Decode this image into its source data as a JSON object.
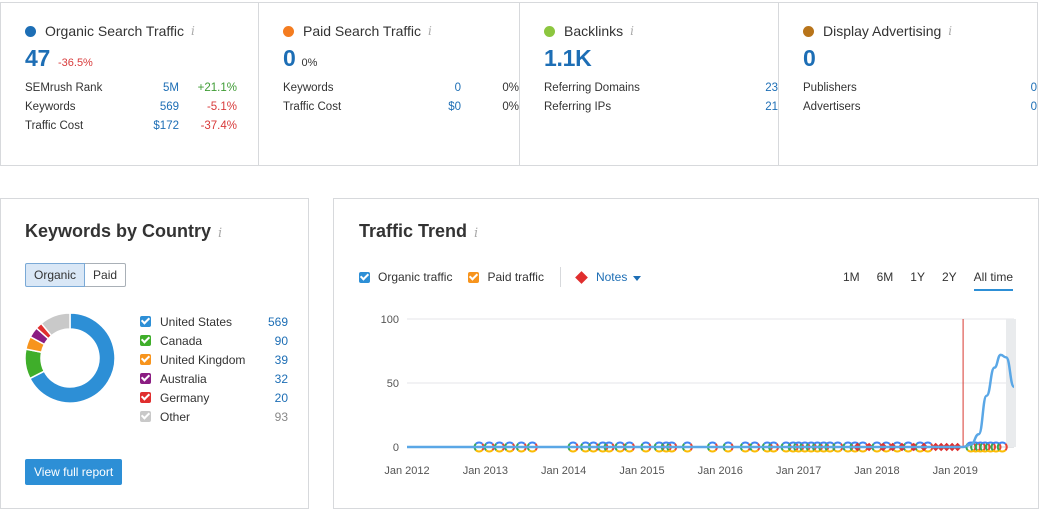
{
  "summary": [
    {
      "title": "Organic Search Traffic",
      "color": "#1d6eb5",
      "value": "47",
      "delta": "-36.5%",
      "delta_class": "down",
      "metrics": [
        {
          "label": "SEMrush Rank",
          "value": "5M",
          "delta": "+21.1%",
          "delta_class": "up"
        },
        {
          "label": "Keywords",
          "value": "569",
          "delta": "-5.1%",
          "delta_class": "down"
        },
        {
          "label": "Traffic Cost",
          "value": "$172",
          "delta": "-37.4%",
          "delta_class": "down"
        }
      ]
    },
    {
      "title": "Paid Search Traffic",
      "color": "#f47c20",
      "value": "0",
      "delta": "0%",
      "delta_class": "neutral",
      "metrics": [
        {
          "label": "Keywords",
          "value": "0",
          "delta": "0%",
          "delta_class": "flat"
        },
        {
          "label": "Traffic Cost",
          "value": "$0",
          "delta": "0%",
          "delta_class": "flat"
        }
      ]
    },
    {
      "title": "Backlinks",
      "color": "#8cc63f",
      "value": "1.1K",
      "delta": "",
      "delta_class": "neutral",
      "metrics": [
        {
          "label": "Referring Domains",
          "value": "23",
          "delta": "",
          "delta_class": "flat"
        },
        {
          "label": "Referring IPs",
          "value": "21",
          "delta": "",
          "delta_class": "flat"
        }
      ]
    },
    {
      "title": "Display Advertising",
      "color": "#b8741a",
      "value": "0",
      "delta": "",
      "delta_class": "neutral",
      "metrics": [
        {
          "label": "Publishers",
          "value": "0",
          "delta": "",
          "delta_class": "flat"
        },
        {
          "label": "Advertisers",
          "value": "0",
          "delta": "",
          "delta_class": "flat"
        }
      ]
    }
  ],
  "info_glyph": "i",
  "keywords_by_country": {
    "title": "Keywords by Country",
    "tabs": [
      "Organic",
      "Paid"
    ],
    "active_tab": "Organic",
    "countries": [
      {
        "name": "United States",
        "value": 569,
        "color": "#2d8fd6"
      },
      {
        "name": "Canada",
        "value": 90,
        "color": "#3fae2a"
      },
      {
        "name": "United Kingdom",
        "value": 39,
        "color": "#f7941d"
      },
      {
        "name": "Australia",
        "value": 32,
        "color": "#8b1d82"
      },
      {
        "name": "Germany",
        "value": 20,
        "color": "#e02e2e"
      },
      {
        "name": "Other",
        "value": 93,
        "color": "#c9c9c9"
      }
    ],
    "button": "View full report"
  },
  "traffic_trend": {
    "title": "Traffic Trend",
    "controls": {
      "organic_label": "Organic traffic",
      "organic_color": "#2d8fd6",
      "paid_label": "Paid traffic",
      "paid_color": "#f7941d",
      "notes_label": "Notes"
    },
    "periods": [
      "1M",
      "6M",
      "1Y",
      "2Y",
      "All time"
    ],
    "active_period": "All time"
  },
  "chart_data": {
    "type": "line",
    "title": "Traffic Trend",
    "xlabel": "",
    "ylabel": "",
    "y_ticks": [
      0,
      50,
      100
    ],
    "ylim": [
      0,
      100
    ],
    "x_tick_labels": [
      "Jan 2012",
      "Jan 2013",
      "Jan 2014",
      "Jan 2015",
      "Jan 2016",
      "Jan 2017",
      "Jan 2018",
      "Jan 2019"
    ],
    "xlim": [
      2012.0,
      2019.75
    ],
    "grid": true,
    "legend": "top-left",
    "series": [
      {
        "name": "Organic traffic",
        "color": "#5aa7e6",
        "x": [
          2012.0,
          2012.83,
          2018.0,
          2018.9,
          2019.1,
          2019.2,
          2019.3,
          2019.4,
          2019.5,
          2019.58,
          2019.65,
          2019.75
        ],
        "values": [
          0,
          0,
          0,
          0,
          0,
          2,
          10,
          40,
          62,
          72,
          70,
          47
        ]
      }
    ],
    "markers": {
      "google_update": [
        2012.92,
        2013.05,
        2013.18,
        2013.31,
        2013.46,
        2013.6,
        2014.12,
        2014.28,
        2014.38,
        2014.5,
        2014.58,
        2014.72,
        2014.84,
        2015.05,
        2015.22,
        2015.31,
        2015.38,
        2015.58,
        2015.9,
        2016.1,
        2016.32,
        2016.44,
        2016.6,
        2016.68,
        2016.84,
        2016.93,
        2017.0,
        2017.08,
        2017.16,
        2017.24,
        2017.32,
        2017.4,
        2017.5,
        2017.63,
        2017.72,
        2017.82,
        2018.0,
        2018.12,
        2018.26,
        2018.4,
        2018.55,
        2018.65,
        2019.2,
        2019.26,
        2019.32,
        2019.38,
        2019.45,
        2019.52,
        2019.6
      ],
      "note": [
        2017.75,
        2017.9,
        2018.08,
        2018.2,
        2018.32,
        2018.47,
        2018.6,
        2018.75,
        2018.82,
        2018.89,
        2018.96,
        2019.03
      ]
    },
    "highlight_x": 2019.1
  }
}
